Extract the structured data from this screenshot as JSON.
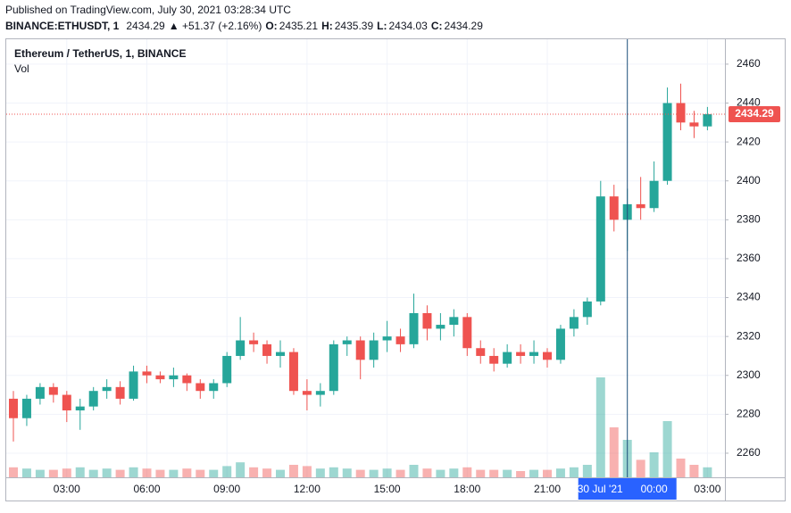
{
  "header": {
    "published": "Published on TradingView.com, July 30, 2021 03:28:34 UTC",
    "symbol": "BINANCE:ETHUSDT, 1",
    "price": "2434.29",
    "change": "▲ +51.37 (+2.16%)",
    "ohlc": [
      {
        "key": "O:",
        "value": "2435.21"
      },
      {
        "key": "H:",
        "value": "2435.39"
      },
      {
        "key": "L:",
        "value": "2434.03"
      },
      {
        "key": "C:",
        "value": "2434.29"
      }
    ]
  },
  "chart_data": {
    "type": "candlestick",
    "legend": [
      "Ethereum / TetherUS, 1, BINANCE",
      "Vol"
    ],
    "categories": [
      null,
      null,
      null,
      null,
      "03:00",
      null,
      null,
      null,
      null,
      null,
      "06:00",
      null,
      null,
      null,
      null,
      null,
      "09:00",
      null,
      null,
      null,
      null,
      null,
      "12:00",
      null,
      null,
      null,
      null,
      null,
      "15:00",
      null,
      null,
      null,
      null,
      null,
      "18:00",
      null,
      null,
      null,
      null,
      null,
      "21:00",
      null,
      null,
      null,
      null,
      null,
      null,
      null,
      null,
      null,
      null,
      null,
      "03:00"
    ],
    "open": [
      2288,
      2278,
      2288,
      2294,
      2290,
      2282,
      2284,
      2292,
      2294,
      2288,
      2302,
      2300,
      2298,
      2300,
      2296,
      2292,
      2296,
      2310,
      2318,
      2316,
      2310,
      2312,
      2292,
      2290,
      2292,
      2316,
      2318,
      2308,
      2318,
      2320,
      2316,
      2332,
      2324,
      2326,
      2330,
      2314,
      2310,
      2306,
      2312,
      2310,
      2312,
      2308,
      2324,
      2330,
      2338,
      2392,
      2380,
      2388,
      2386,
      2400,
      2440,
      2430,
      2428
    ],
    "high": [
      2292,
      2290,
      2296,
      2296,
      2292,
      2288,
      2294,
      2298,
      2297,
      2305,
      2305,
      2302,
      2304,
      2301,
      2298,
      2298,
      2312,
      2330,
      2322,
      2318,
      2318,
      2314,
      2298,
      2296,
      2318,
      2320,
      2320,
      2322,
      2328,
      2324,
      2342,
      2336,
      2332,
      2334,
      2332,
      2318,
      2314,
      2316,
      2316,
      2318,
      2314,
      2326,
      2334,
      2340,
      2400,
      2398,
      2396,
      2402,
      2410,
      2448,
      2450,
      2436,
      2438
    ],
    "low": [
      2266,
      2274,
      2285,
      2286,
      2276,
      2272,
      2282,
      2288,
      2285,
      2287,
      2296,
      2296,
      2294,
      2292,
      2288,
      2288,
      2294,
      2308,
      2312,
      2306,
      2304,
      2290,
      2282,
      2284,
      2290,
      2310,
      2298,
      2304,
      2312,
      2312,
      2314,
      2318,
      2318,
      2320,
      2310,
      2306,
      2302,
      2304,
      2306,
      2306,
      2304,
      2306,
      2320,
      2326,
      2336,
      2374,
      2364,
      2380,
      2384,
      2398,
      2426,
      2422,
      2426
    ],
    "close": [
      2278,
      2288,
      2294,
      2290,
      2282,
      2284,
      2292,
      2294,
      2288,
      2302,
      2300,
      2298,
      2300,
      2296,
      2292,
      2296,
      2310,
      2318,
      2316,
      2310,
      2312,
      2292,
      2290,
      2292,
      2316,
      2318,
      2308,
      2318,
      2320,
      2316,
      2332,
      2324,
      2326,
      2330,
      2314,
      2310,
      2306,
      2312,
      2310,
      2312,
      2308,
      2324,
      2330,
      2338,
      2392,
      2380,
      2388,
      2386,
      2400,
      2440,
      2430,
      2428,
      2434.29
    ],
    "volume": [
      8,
      7,
      6,
      6,
      7,
      8,
      6,
      7,
      6,
      8,
      7,
      6,
      6,
      7,
      6,
      6,
      9,
      12,
      8,
      7,
      6,
      10,
      9,
      7,
      8,
      7,
      6,
      6,
      7,
      6,
      10,
      7,
      6,
      7,
      8,
      6,
      6,
      6,
      5,
      6,
      6,
      7,
      8,
      10,
      80,
      40,
      30,
      14,
      20,
      45,
      15,
      10,
      8
    ],
    "vlim": [
      0,
      100
    ],
    "up_color": "#26a69a",
    "down_color": "#ef5350",
    "ylim": [
      2247.6,
      2472.8
    ],
    "yticks": [
      2260,
      2280,
      2300,
      2320,
      2340,
      2360,
      2380,
      2400,
      2420,
      2440,
      2460
    ],
    "last_price": 2434.29,
    "crosshair": {
      "date": "30 Jul '21",
      "time": "00:00"
    },
    "grid": true
  }
}
